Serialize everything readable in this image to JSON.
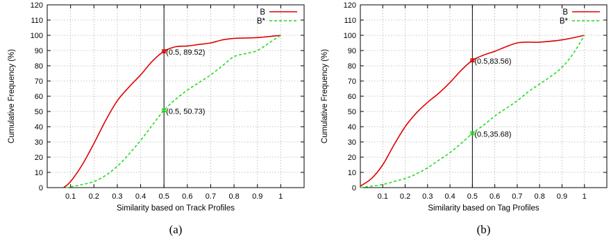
{
  "chart_data": [
    {
      "type": "line",
      "caption": "(a)",
      "xlabel": "Similarity based on Track Profiles",
      "ylabel": "Cumulative Frequency (%)",
      "xlim": [
        0,
        1.1
      ],
      "ylim": [
        0,
        120
      ],
      "xticks": [
        0.1,
        0.2,
        0.3,
        0.4,
        0.5,
        0.6,
        0.7,
        0.8,
        0.9,
        1
      ],
      "xtick_labels": [
        "0.1",
        "0.2",
        "0.3",
        "0.4",
        "0.5",
        "0.6",
        "0.7",
        "0.8",
        "0.9",
        "1"
      ],
      "yticks": [
        0,
        10,
        20,
        30,
        40,
        50,
        60,
        70,
        80,
        90,
        100,
        110,
        120
      ],
      "grid": true,
      "grid_style": "dotted",
      "legend_position": "top-right",
      "vline_x": 0.5,
      "series": [
        {
          "name": "B",
          "color": "#e00000",
          "dash": "solid",
          "points": [
            [
              0.07,
              0
            ],
            [
              0.1,
              4
            ],
            [
              0.15,
              15
            ],
            [
              0.2,
              29
            ],
            [
              0.25,
              44
            ],
            [
              0.3,
              57
            ],
            [
              0.35,
              66
            ],
            [
              0.4,
              74
            ],
            [
              0.45,
              83
            ],
            [
              0.5,
              89.52
            ],
            [
              0.55,
              92.5
            ],
            [
              0.6,
              93
            ],
            [
              0.65,
              94
            ],
            [
              0.7,
              95
            ],
            [
              0.75,
              97
            ],
            [
              0.8,
              98
            ],
            [
              0.9,
              98.5
            ],
            [
              1,
              100
            ]
          ]
        },
        {
          "name": "B*",
          "color": "#22dd22",
          "dash": "dashed",
          "points": [
            [
              0.08,
              0
            ],
            [
              0.1,
              0.5
            ],
            [
              0.15,
              2
            ],
            [
              0.2,
              4
            ],
            [
              0.25,
              8
            ],
            [
              0.3,
              14
            ],
            [
              0.35,
              22
            ],
            [
              0.4,
              31
            ],
            [
              0.45,
              41
            ],
            [
              0.5,
              50.73
            ],
            [
              0.55,
              58
            ],
            [
              0.6,
              64
            ],
            [
              0.65,
              69
            ],
            [
              0.7,
              74
            ],
            [
              0.75,
              80
            ],
            [
              0.8,
              86
            ],
            [
              0.85,
              88
            ],
            [
              0.9,
              90
            ],
            [
              0.95,
              95
            ],
            [
              1,
              100
            ]
          ]
        }
      ],
      "annotations": [
        {
          "x": 0.5,
          "y": 89.52,
          "text": "(0.5, 89.52)",
          "color": "#e00000"
        },
        {
          "x": 0.5,
          "y": 50.73,
          "text": "(0.5, 50.73)",
          "color": "#22dd22"
        }
      ]
    },
    {
      "type": "line",
      "caption": "(b)",
      "xlabel": "Similarity based on Tag Profiles",
      "ylabel": "Cumulative Frequency (%)",
      "xlim": [
        0,
        1.1
      ],
      "ylim": [
        0,
        120
      ],
      "xticks": [
        0.1,
        0.2,
        0.3,
        0.4,
        0.5,
        0.6,
        0.7,
        0.8,
        0.9,
        1
      ],
      "xtick_labels": [
        "0.1",
        "0.2",
        "0.3",
        "0.4",
        "0.5",
        "0.6",
        "0.7",
        "0.8",
        "0.9",
        "1"
      ],
      "yticks": [
        0,
        10,
        20,
        30,
        40,
        50,
        60,
        70,
        80,
        90,
        100,
        110,
        120
      ],
      "grid": true,
      "grid_style": "dotted",
      "legend_position": "top-right",
      "vline_x": 0.5,
      "series": [
        {
          "name": "B",
          "color": "#e00000",
          "dash": "solid",
          "points": [
            [
              0,
              1
            ],
            [
              0.05,
              6
            ],
            [
              0.1,
              15
            ],
            [
              0.15,
              28
            ],
            [
              0.2,
              40
            ],
            [
              0.25,
              49
            ],
            [
              0.3,
              56
            ],
            [
              0.35,
              62
            ],
            [
              0.4,
              69
            ],
            [
              0.45,
              77
            ],
            [
              0.5,
              83.56
            ],
            [
              0.55,
              87
            ],
            [
              0.6,
              89.5
            ],
            [
              0.65,
              92.5
            ],
            [
              0.7,
              95
            ],
            [
              0.75,
              95.5
            ],
            [
              0.8,
              95.5
            ],
            [
              0.9,
              97
            ],
            [
              1,
              100
            ]
          ]
        },
        {
          "name": "B*",
          "color": "#22dd22",
          "dash": "dashed",
          "points": [
            [
              0,
              0
            ],
            [
              0.05,
              1
            ],
            [
              0.1,
              2
            ],
            [
              0.15,
              4
            ],
            [
              0.2,
              6
            ],
            [
              0.25,
              9
            ],
            [
              0.3,
              13
            ],
            [
              0.35,
              18
            ],
            [
              0.4,
              23
            ],
            [
              0.45,
              29
            ],
            [
              0.5,
              35.68
            ],
            [
              0.55,
              41
            ],
            [
              0.6,
              47
            ],
            [
              0.65,
              52
            ],
            [
              0.7,
              57
            ],
            [
              0.75,
              63
            ],
            [
              0.8,
              68
            ],
            [
              0.85,
              73
            ],
            [
              0.9,
              79
            ],
            [
              0.95,
              88
            ],
            [
              1,
              100
            ]
          ]
        }
      ],
      "annotations": [
        {
          "x": 0.5,
          "y": 83.56,
          "text": "(0.5,83.56)",
          "color": "#e00000"
        },
        {
          "x": 0.5,
          "y": 35.68,
          "text": "(0.5,35.68)",
          "color": "#22dd22"
        }
      ]
    }
  ]
}
